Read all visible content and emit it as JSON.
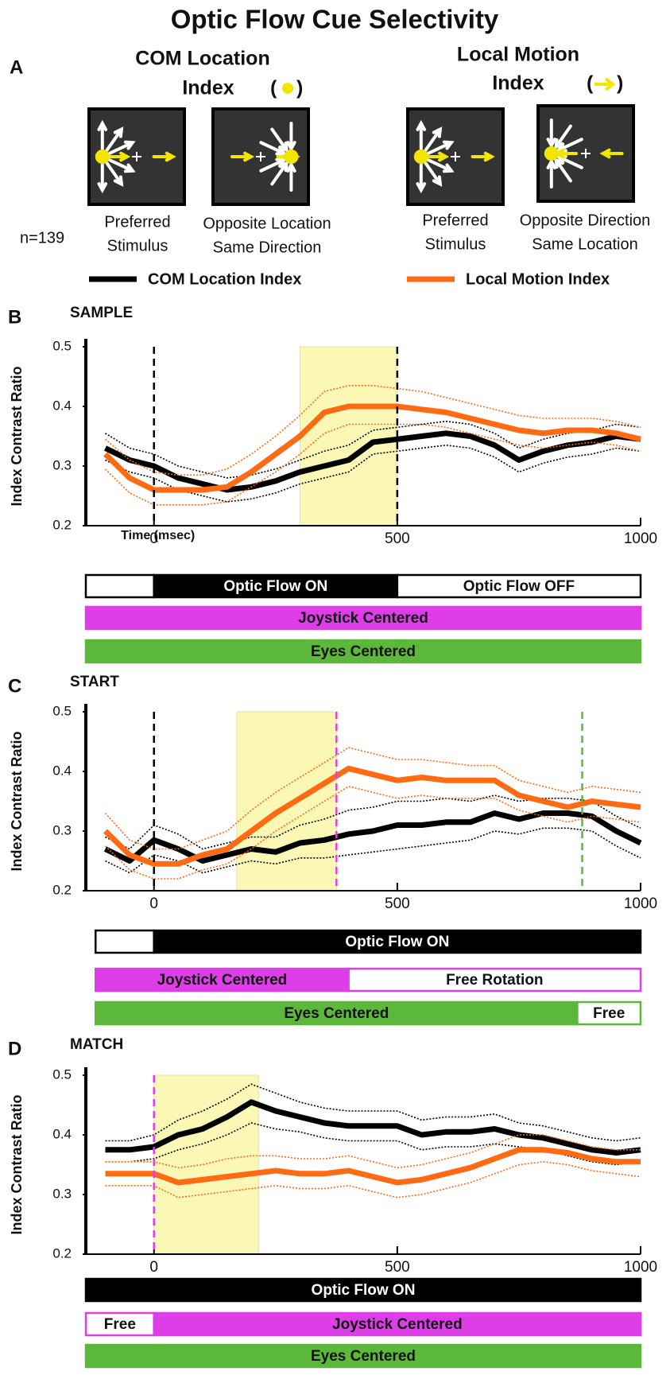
{
  "title": "Optic Flow Cue Selectivity",
  "panel_a": {
    "label": "A",
    "n": "n=139",
    "indices": [
      {
        "title": "COM Location",
        "title2": "Index",
        "symbol_open": "(",
        "symbol_close": ")",
        "captions": [
          {
            "lines": [
              "Preferred",
              "Stimulus"
            ]
          },
          {
            "lines": [
              "Opposite Location",
              "Same Direction"
            ]
          }
        ]
      },
      {
        "title": "Local Motion",
        "title2": "Index",
        "symbol_open": "(",
        "symbol_close": ")",
        "captions": [
          {
            "lines": [
              "Preferred",
              "Stimulus"
            ]
          },
          {
            "lines": [
              "Opposite Direction",
              "Same Location"
            ]
          }
        ]
      }
    ]
  },
  "chart_data": [
    {
      "type": "line",
      "panel": "B",
      "title": "SAMPLE",
      "y_label": "Index Contrast Ratio",
      "x_label": "Time (msec)",
      "x": [
        -100,
        -50,
        0,
        50,
        100,
        150,
        200,
        250,
        300,
        350,
        400,
        450,
        500,
        550,
        600,
        650,
        700,
        750,
        800,
        850,
        900,
        950,
        1000
      ],
      "xlim": [
        -140,
        1000
      ],
      "xticks": [
        0,
        500,
        1000
      ],
      "ylim": [
        0.2,
        0.5
      ],
      "yticks": [
        0.2,
        0.3,
        0.4,
        0.5
      ],
      "shade": [
        300,
        500
      ],
      "vlines": [
        {
          "x": 0,
          "color": "#000000"
        },
        {
          "x": 500,
          "color": "#000000"
        }
      ],
      "series": [
        {
          "name": "COM Location Index",
          "color": "#000000",
          "values": [
            0.33,
            0.31,
            0.3,
            0.28,
            0.27,
            0.26,
            0.265,
            0.275,
            0.29,
            0.3,
            0.31,
            0.34,
            0.345,
            0.35,
            0.355,
            0.35,
            0.335,
            0.31,
            0.325,
            0.335,
            0.34,
            0.35,
            0.345
          ],
          "upper": [
            0.355,
            0.33,
            0.32,
            0.3,
            0.29,
            0.28,
            0.285,
            0.295,
            0.31,
            0.325,
            0.335,
            0.36,
            0.365,
            0.37,
            0.375,
            0.37,
            0.355,
            0.33,
            0.345,
            0.355,
            0.36,
            0.37,
            0.365
          ],
          "lower": [
            0.31,
            0.29,
            0.28,
            0.26,
            0.25,
            0.24,
            0.245,
            0.255,
            0.27,
            0.28,
            0.29,
            0.32,
            0.325,
            0.33,
            0.335,
            0.33,
            0.315,
            0.29,
            0.305,
            0.315,
            0.32,
            0.33,
            0.325
          ]
        },
        {
          "name": "Local Motion Index",
          "color": "#ff6a13",
          "values": [
            0.32,
            0.28,
            0.26,
            0.26,
            0.26,
            0.265,
            0.29,
            0.32,
            0.35,
            0.39,
            0.4,
            0.4,
            0.4,
            0.395,
            0.39,
            0.38,
            0.37,
            0.36,
            0.355,
            0.36,
            0.36,
            0.355,
            0.345
          ],
          "upper": [
            0.345,
            0.31,
            0.29,
            0.285,
            0.285,
            0.295,
            0.32,
            0.35,
            0.385,
            0.425,
            0.435,
            0.435,
            0.43,
            0.425,
            0.415,
            0.405,
            0.395,
            0.385,
            0.38,
            0.38,
            0.38,
            0.375,
            0.365
          ],
          "lower": [
            0.295,
            0.255,
            0.235,
            0.235,
            0.235,
            0.24,
            0.265,
            0.29,
            0.32,
            0.355,
            0.37,
            0.37,
            0.37,
            0.37,
            0.365,
            0.355,
            0.345,
            0.335,
            0.33,
            0.335,
            0.34,
            0.335,
            0.325
          ]
        }
      ],
      "epochs": [
        {
          "border": "#000000",
          "segments": [
            {
              "from": -140,
              "to": 0,
              "fill": "#ffffff"
            },
            {
              "from": 0,
              "to": 500,
              "fill": "#000000",
              "label": "Optic Flow ON"
            },
            {
              "from": 500,
              "to": 1000,
              "fill": "#ffffff",
              "label": "Optic Flow OFF"
            }
          ]
        },
        {
          "border": "#dd3ee8",
          "segments": [
            {
              "from": -140,
              "to": 1000,
              "fill": "#dd3ee8",
              "label": "Joystick Centered"
            }
          ]
        },
        {
          "border": "#5cb83a",
          "segments": [
            {
              "from": -140,
              "to": 1000,
              "fill": "#5cb83a",
              "label": "Eyes Centered"
            }
          ]
        }
      ]
    },
    {
      "type": "line",
      "panel": "C",
      "title": "START",
      "y_label": "Index Contrast Ratio",
      "x": [
        -100,
        -50,
        0,
        50,
        100,
        150,
        200,
        250,
        300,
        350,
        400,
        450,
        500,
        550,
        600,
        650,
        700,
        750,
        800,
        850,
        900,
        950,
        1000
      ],
      "xlim": [
        -140,
        1000
      ],
      "xticks": [
        0,
        500,
        1000
      ],
      "ylim": [
        0.2,
        0.5
      ],
      "yticks": [
        0.2,
        0.3,
        0.4,
        0.5
      ],
      "shade": [
        170,
        375
      ],
      "vlines": [
        {
          "x": 0,
          "color": "#000000"
        },
        {
          "x": 375,
          "color": "#dd3ee8"
        },
        {
          "x": 880,
          "color": "#5cb83a"
        }
      ],
      "series": [
        {
          "name": "COM Location Index",
          "color": "#000000",
          "values": [
            0.27,
            0.25,
            0.285,
            0.27,
            0.25,
            0.26,
            0.27,
            0.265,
            0.28,
            0.285,
            0.295,
            0.3,
            0.31,
            0.31,
            0.315,
            0.315,
            0.33,
            0.32,
            0.33,
            0.33,
            0.325,
            0.3,
            0.28
          ],
          "upper": [
            0.29,
            0.27,
            0.31,
            0.295,
            0.27,
            0.28,
            0.29,
            0.29,
            0.31,
            0.32,
            0.335,
            0.34,
            0.35,
            0.35,
            0.355,
            0.35,
            0.36,
            0.35,
            0.355,
            0.355,
            0.35,
            0.325,
            0.305
          ],
          "lower": [
            0.25,
            0.23,
            0.26,
            0.25,
            0.23,
            0.24,
            0.25,
            0.245,
            0.255,
            0.255,
            0.26,
            0.265,
            0.27,
            0.275,
            0.28,
            0.285,
            0.3,
            0.295,
            0.305,
            0.305,
            0.3,
            0.275,
            0.255
          ]
        },
        {
          "name": "Local Motion Index",
          "color": "#ff6a13",
          "values": [
            0.3,
            0.26,
            0.245,
            0.245,
            0.26,
            0.27,
            0.3,
            0.33,
            0.355,
            0.38,
            0.405,
            0.395,
            0.385,
            0.39,
            0.385,
            0.385,
            0.385,
            0.36,
            0.35,
            0.34,
            0.35,
            0.345,
            0.34
          ],
          "upper": [
            0.33,
            0.285,
            0.27,
            0.27,
            0.285,
            0.3,
            0.335,
            0.365,
            0.39,
            0.415,
            0.44,
            0.43,
            0.42,
            0.42,
            0.415,
            0.41,
            0.41,
            0.385,
            0.375,
            0.365,
            0.375,
            0.37,
            0.365
          ],
          "lower": [
            0.275,
            0.235,
            0.22,
            0.22,
            0.235,
            0.245,
            0.27,
            0.3,
            0.325,
            0.35,
            0.375,
            0.365,
            0.355,
            0.36,
            0.355,
            0.355,
            0.355,
            0.335,
            0.325,
            0.315,
            0.325,
            0.32,
            0.315
          ]
        }
      ],
      "epochs": [
        {
          "border": "#000000",
          "segments": [
            {
              "from": -120,
              "to": 0,
              "fill": "#ffffff"
            },
            {
              "from": 0,
              "to": 1000,
              "fill": "#000000",
              "label": "Optic Flow ON"
            }
          ]
        },
        {
          "border": "#dd3ee8",
          "segments": [
            {
              "from": -120,
              "to": 400,
              "fill": "#dd3ee8",
              "label": "Joystick Centered"
            },
            {
              "from": 400,
              "to": 1000,
              "fill": "#ffffff",
              "label": "Free Rotation"
            }
          ]
        },
        {
          "border": "#5cb83a",
          "segments": [
            {
              "from": -120,
              "to": 870,
              "fill": "#5cb83a",
              "label": "Eyes Centered"
            },
            {
              "from": 870,
              "to": 1000,
              "fill": "#ffffff",
              "label": "Free"
            }
          ]
        }
      ]
    },
    {
      "type": "line",
      "panel": "D",
      "title": "MATCH",
      "y_label": "Index Contrast Ratio",
      "x": [
        -100,
        -50,
        0,
        50,
        100,
        150,
        200,
        250,
        300,
        350,
        400,
        450,
        500,
        550,
        600,
        650,
        700,
        750,
        800,
        850,
        900,
        950,
        1000
      ],
      "xlim": [
        -140,
        1000
      ],
      "xticks": [
        0,
        500,
        1000
      ],
      "ylim": [
        0.2,
        0.5
      ],
      "yticks": [
        0.2,
        0.3,
        0.4,
        0.5
      ],
      "shade": [
        0,
        215
      ],
      "vlines": [
        {
          "x": 0,
          "color": "#dd3ee8"
        }
      ],
      "series": [
        {
          "name": "COM Location Index",
          "color": "#000000",
          "values": [
            0.375,
            0.375,
            0.38,
            0.4,
            0.41,
            0.43,
            0.455,
            0.44,
            0.43,
            0.42,
            0.415,
            0.415,
            0.415,
            0.4,
            0.405,
            0.405,
            0.41,
            0.4,
            0.395,
            0.385,
            0.375,
            0.37,
            0.375
          ],
          "upper": [
            0.39,
            0.39,
            0.4,
            0.425,
            0.44,
            0.46,
            0.485,
            0.47,
            0.455,
            0.445,
            0.44,
            0.44,
            0.44,
            0.425,
            0.43,
            0.43,
            0.435,
            0.42,
            0.415,
            0.405,
            0.395,
            0.39,
            0.395
          ],
          "lower": [
            0.355,
            0.355,
            0.36,
            0.375,
            0.385,
            0.4,
            0.42,
            0.41,
            0.405,
            0.395,
            0.39,
            0.39,
            0.39,
            0.375,
            0.38,
            0.38,
            0.385,
            0.38,
            0.375,
            0.365,
            0.355,
            0.35,
            0.355
          ]
        },
        {
          "name": "Local Motion Index",
          "color": "#ff6a13",
          "values": [
            0.335,
            0.335,
            0.335,
            0.32,
            0.325,
            0.33,
            0.335,
            0.34,
            0.335,
            0.335,
            0.34,
            0.33,
            0.32,
            0.325,
            0.335,
            0.345,
            0.36,
            0.375,
            0.375,
            0.37,
            0.36,
            0.355,
            0.355
          ],
          "upper": [
            0.355,
            0.355,
            0.355,
            0.345,
            0.35,
            0.36,
            0.365,
            0.365,
            0.36,
            0.36,
            0.365,
            0.355,
            0.345,
            0.35,
            0.36,
            0.37,
            0.385,
            0.4,
            0.4,
            0.39,
            0.38,
            0.375,
            0.375
          ],
          "lower": [
            0.315,
            0.315,
            0.315,
            0.295,
            0.3,
            0.305,
            0.31,
            0.315,
            0.31,
            0.31,
            0.315,
            0.305,
            0.295,
            0.3,
            0.31,
            0.32,
            0.335,
            0.35,
            0.355,
            0.35,
            0.34,
            0.335,
            0.33
          ]
        }
      ],
      "epochs": [
        {
          "border": "#000000",
          "segments": [
            {
              "from": -140,
              "to": 1000,
              "fill": "#000000",
              "label": "Optic Flow ON"
            }
          ]
        },
        {
          "border": "#dd3ee8",
          "segments": [
            {
              "from": -140,
              "to": 0,
              "fill": "#ffffff",
              "label": "Free"
            },
            {
              "from": 0,
              "to": 1000,
              "fill": "#dd3ee8",
              "label": "Joystick Centered"
            }
          ]
        },
        {
          "border": "#5cb83a",
          "segments": [
            {
              "from": -140,
              "to": 1000,
              "fill": "#5cb83a",
              "label": "Eyes Centered"
            }
          ]
        }
      ]
    }
  ]
}
